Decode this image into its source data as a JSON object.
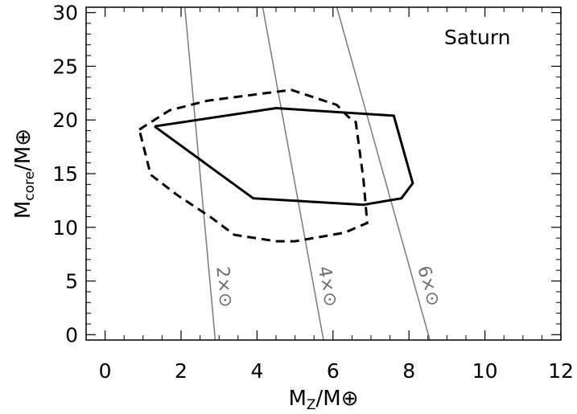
{
  "chart_data": {
    "type": "line",
    "title": "Saturn",
    "xlabel": {
      "base": "M",
      "sub": "Z",
      "mid": "/M",
      "symbol": "⊕"
    },
    "ylabel": {
      "base": "M",
      "sub": "core",
      "mid": "/M",
      "symbol": "⊕"
    },
    "xlim": [
      -0.5,
      12
    ],
    "ylim": [
      -0.5,
      30.5
    ],
    "x_ticks": [
      0,
      2,
      4,
      6,
      8,
      10,
      12
    ],
    "y_ticks": [
      0,
      5,
      10,
      15,
      20,
      25,
      30
    ],
    "x_tick_labels": [
      "0",
      "2",
      "4",
      "6",
      "8",
      "10",
      "12"
    ],
    "y_tick_labels": [
      "0",
      "5",
      "10",
      "15",
      "20",
      "25",
      "30"
    ],
    "grid": false,
    "colors": {
      "contours": "#000000",
      "metallicity_lines": "#7a7a7a"
    },
    "series": [
      {
        "style": "solid",
        "closed": true,
        "points": [
          [
            1.3,
            19.4
          ],
          [
            4.5,
            21.1
          ],
          [
            7.6,
            20.4
          ],
          [
            8.1,
            14.1
          ],
          [
            7.8,
            12.7
          ],
          [
            6.8,
            12.1
          ],
          [
            3.9,
            12.7
          ],
          [
            1.3,
            19.4
          ]
        ]
      },
      {
        "style": "dashed",
        "closed": true,
        "points": [
          [
            0.9,
            19.1
          ],
          [
            1.7,
            20.9
          ],
          [
            2.7,
            21.8
          ],
          [
            4.9,
            22.8
          ],
          [
            6.1,
            21.4
          ],
          [
            6.4,
            20.3
          ],
          [
            6.6,
            19.8
          ],
          [
            6.8,
            14.5
          ],
          [
            6.9,
            10.4
          ],
          [
            6.3,
            9.5
          ],
          [
            5.0,
            8.7
          ],
          [
            4.5,
            8.7
          ],
          [
            3.4,
            9.3
          ],
          [
            2.8,
            10.9
          ],
          [
            1.9,
            13.0
          ],
          [
            1.2,
            14.9
          ],
          [
            0.9,
            19.1
          ]
        ]
      }
    ],
    "metallicity_lines": [
      {
        "label": "2×⊙",
        "x_top": 2.1,
        "x_bottom": 2.9
      },
      {
        "label": "4×⊙",
        "x_top": 4.15,
        "x_bottom": 5.75
      },
      {
        "label": "6×⊙",
        "x_top": 6.1,
        "x_bottom": 8.55
      }
    ]
  }
}
